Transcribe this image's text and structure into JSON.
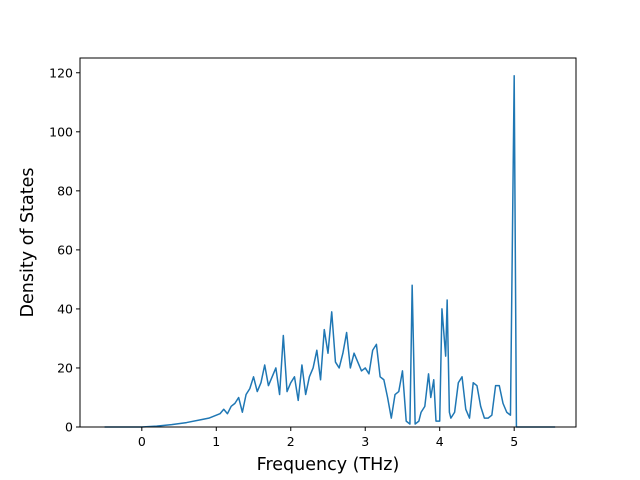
{
  "chart_data": {
    "type": "line",
    "title": "",
    "xlabel": "Frequency (THz)",
    "ylabel": "Density of States",
    "xlim": [
      -0.83,
      5.83
    ],
    "ylim": [
      0,
      125
    ],
    "xticks": [
      0,
      1,
      2,
      3,
      4,
      5
    ],
    "yticks": [
      0,
      20,
      40,
      60,
      80,
      100,
      120
    ],
    "grid": false,
    "legend": "none",
    "series": [
      {
        "color": "#1f77b4",
        "x": [
          -0.5,
          -0.3,
          -0.1,
          0.0,
          0.2,
          0.4,
          0.6,
          0.8,
          0.9,
          1.0,
          1.05,
          1.1,
          1.15,
          1.2,
          1.25,
          1.3,
          1.35,
          1.4,
          1.45,
          1.5,
          1.55,
          1.6,
          1.65,
          1.7,
          1.75,
          1.8,
          1.85,
          1.9,
          1.95,
          2.0,
          2.05,
          2.1,
          2.15,
          2.2,
          2.25,
          2.3,
          2.35,
          2.4,
          2.45,
          2.5,
          2.55,
          2.6,
          2.65,
          2.7,
          2.75,
          2.8,
          2.85,
          2.9,
          2.95,
          3.0,
          3.05,
          3.1,
          3.15,
          3.2,
          3.25,
          3.3,
          3.35,
          3.4,
          3.45,
          3.5,
          3.55,
          3.6,
          3.63,
          3.67,
          3.72,
          3.75,
          3.8,
          3.85,
          3.88,
          3.92,
          3.95,
          4.0,
          4.03,
          4.08,
          4.1,
          4.13,
          4.15,
          4.2,
          4.25,
          4.3,
          4.35,
          4.4,
          4.45,
          4.5,
          4.55,
          4.6,
          4.65,
          4.7,
          4.75,
          4.8,
          4.85,
          4.9,
          4.95,
          5.0,
          5.03,
          5.06,
          5.1,
          5.3,
          5.55
        ],
        "y": [
          0,
          0,
          0,
          0,
          0.3,
          0.8,
          1.5,
          2.5,
          3.0,
          4.0,
          4.5,
          6.0,
          4.5,
          7.0,
          8.0,
          10.0,
          5.0,
          11.0,
          13.0,
          17.0,
          12.0,
          15.0,
          21.0,
          14.0,
          17.0,
          20.0,
          11.0,
          31.0,
          12.0,
          15.0,
          17.0,
          9.0,
          21.0,
          11.0,
          17.0,
          20.0,
          26.0,
          16.0,
          33.0,
          25.0,
          39.0,
          22.0,
          20.0,
          25.0,
          32.0,
          20.0,
          25.0,
          22.0,
          19.0,
          20.0,
          18.0,
          26.0,
          28.0,
          17.0,
          16.0,
          10.0,
          3.0,
          11.0,
          12.0,
          19.0,
          2.0,
          1.0,
          48.0,
          1.0,
          2.0,
          5.0,
          7.0,
          18.0,
          10.0,
          16.0,
          2.0,
          2.0,
          40.0,
          24.0,
          43.0,
          5.0,
          3.0,
          5.0,
          15.0,
          17.0,
          6.0,
          3.0,
          15.0,
          14.0,
          7.0,
          3.0,
          3.0,
          4.0,
          14.0,
          14.0,
          8.0,
          5.0,
          4.0,
          119.0,
          0,
          0,
          0,
          0,
          0
        ]
      }
    ]
  }
}
